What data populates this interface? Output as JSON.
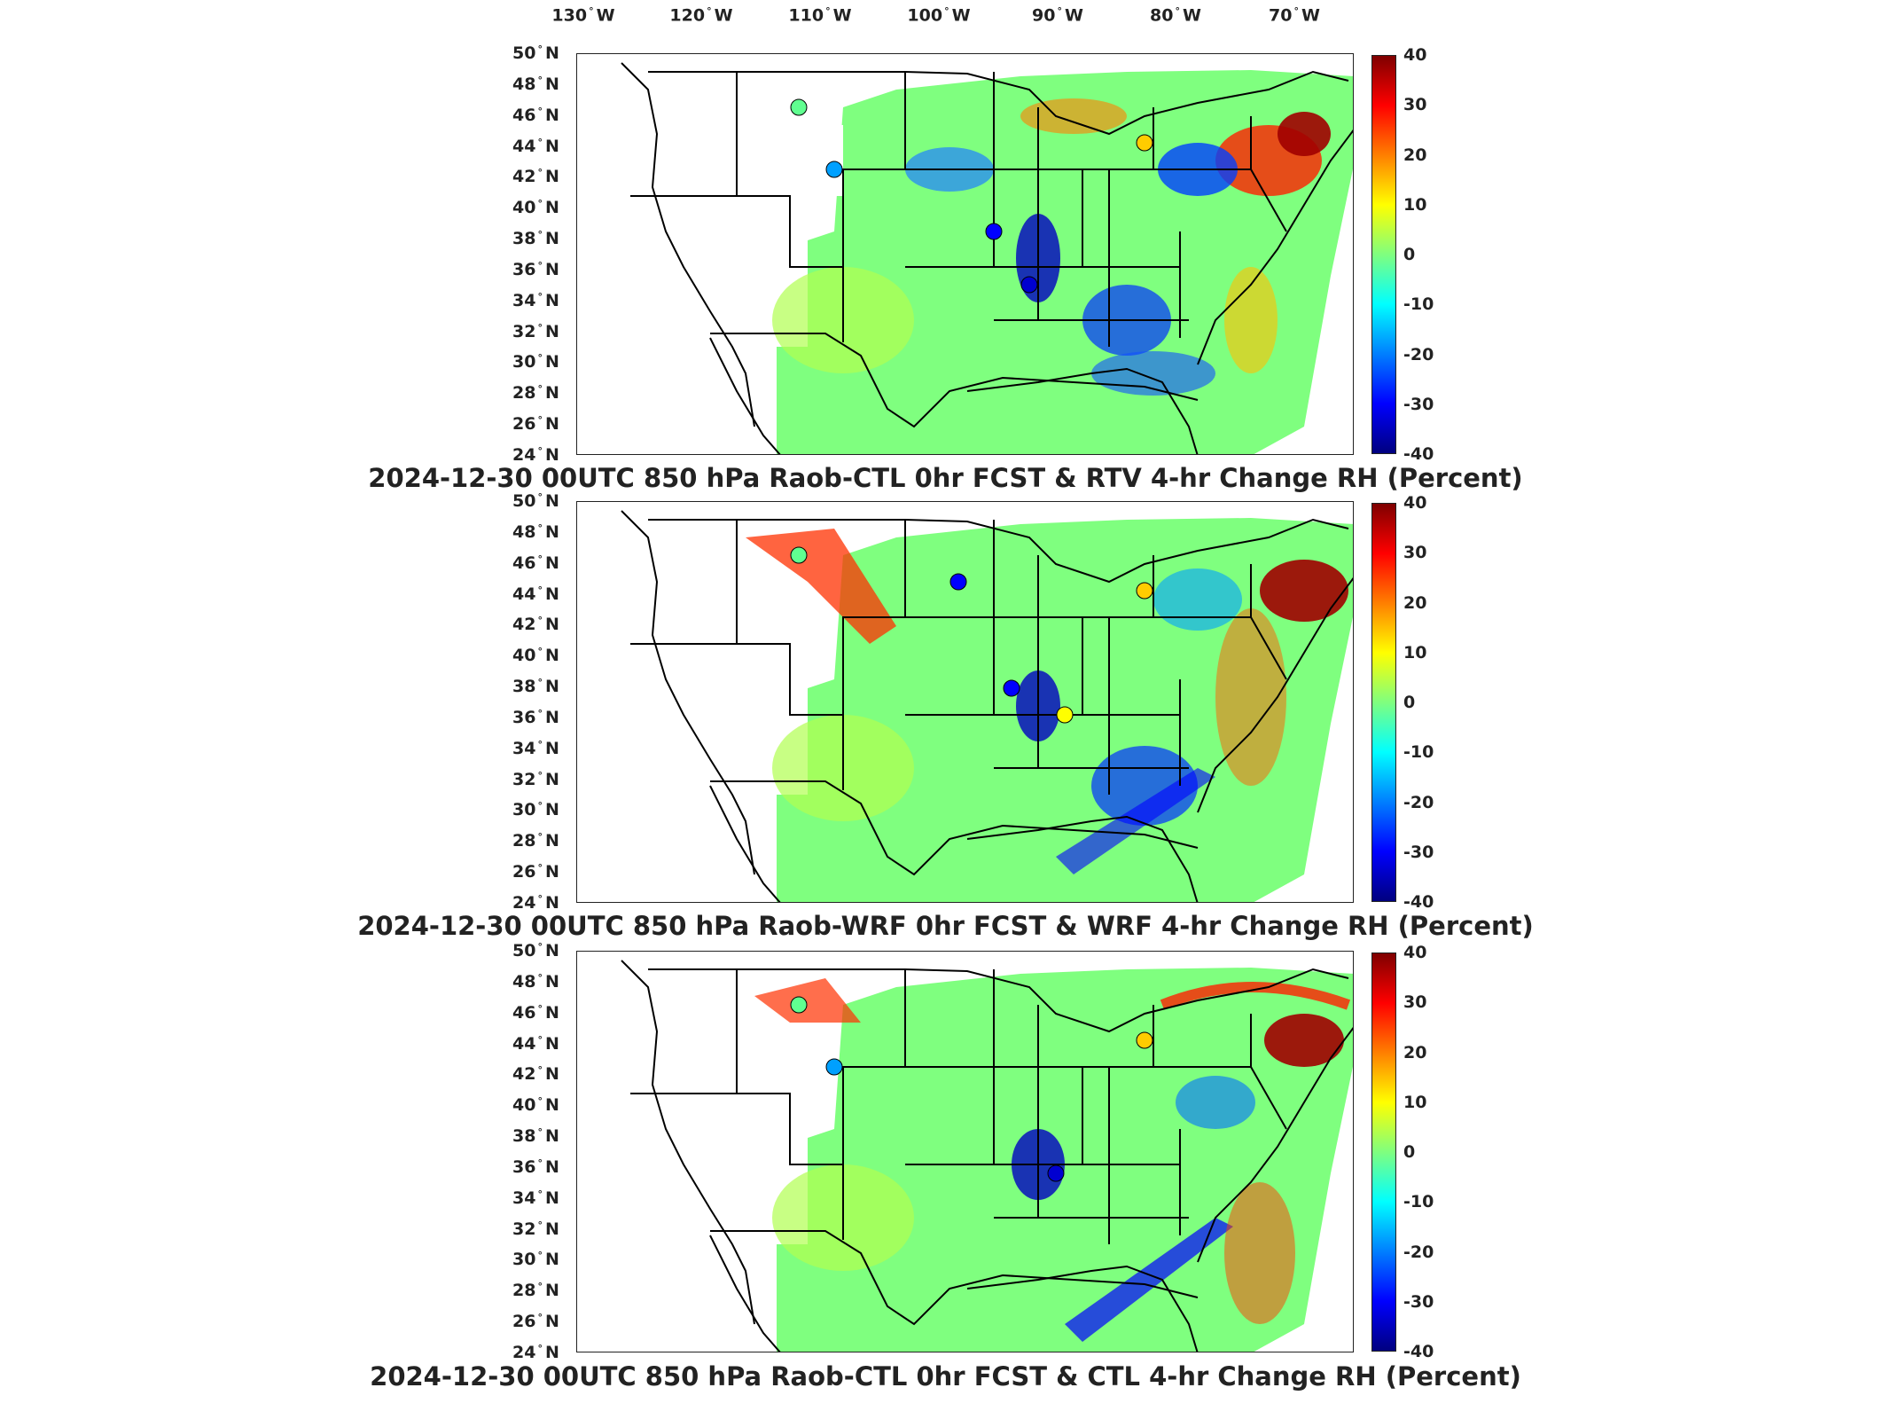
{
  "longitude_labels": [
    "130",
    "120",
    "110",
    "100",
    "90",
    "80",
    "70"
  ],
  "longitude_suffix": "W",
  "latitude_labels": [
    "50",
    "48",
    "46",
    "44",
    "42",
    "40",
    "38",
    "36",
    "34",
    "32",
    "30",
    "28",
    "26",
    "24"
  ],
  "latitude_suffix": "N",
  "colorbar_ticks": [
    "40",
    "30",
    "20",
    "10",
    "0",
    "-10",
    "-20",
    "-30",
    "-40"
  ],
  "colormap": [
    "#00007f",
    "#0000ff",
    "#007fff",
    "#00ffff",
    "#7fff7f",
    "#ffff00",
    "#ff7f00",
    "#ff0000",
    "#7f0000"
  ],
  "panels": [
    {
      "title": "2024-12-30 00UTC 850 hPa Raob-CTL 0hr FCST & RTV 4-hr Change RH (Percent)"
    },
    {
      "title": "2024-12-30 00UTC 850 hPa Raob-WRF 0hr FCST & WRF 4-hr Change RH (Percent)"
    },
    {
      "title": "2024-12-30 00UTC 850 hPa Raob-CTL 0hr FCST & CTL 4-hr Change RH (Percent)"
    }
  ]
}
